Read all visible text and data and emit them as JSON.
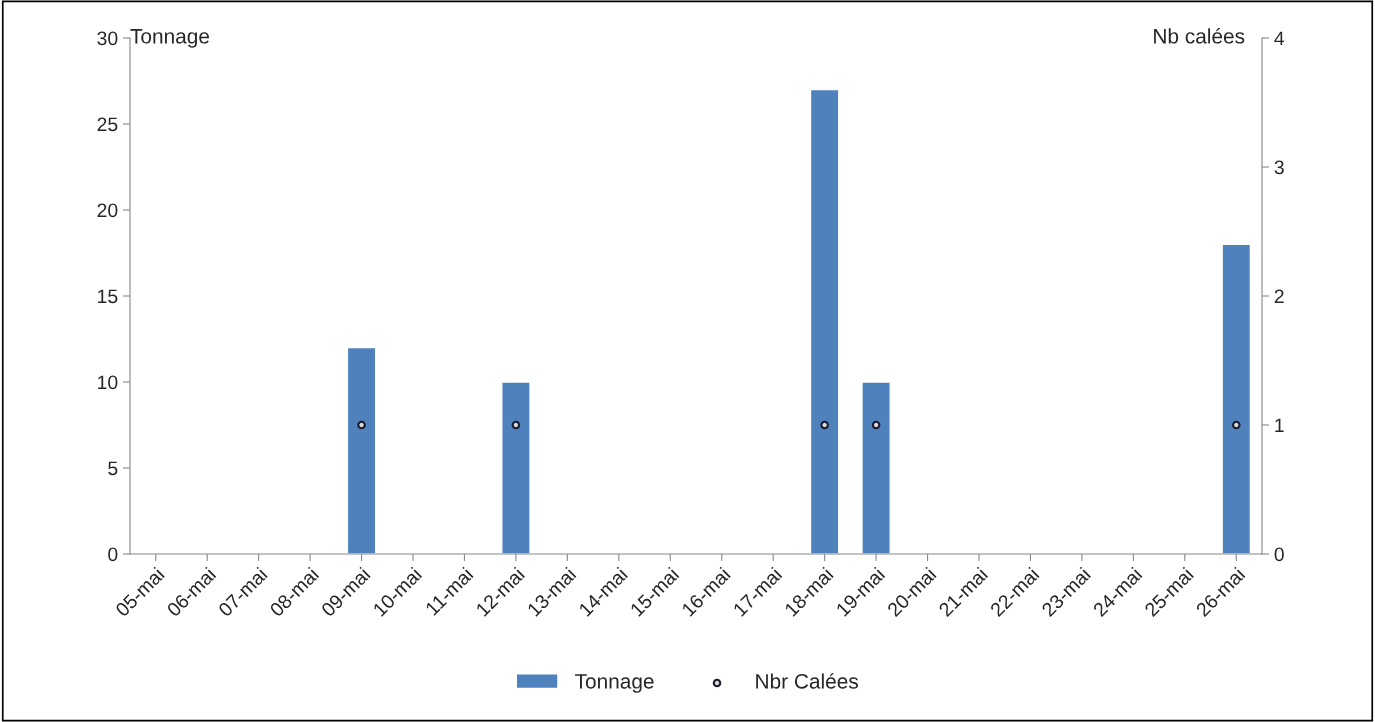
{
  "chart_data": {
    "type": "bar",
    "categories": [
      "05-mai",
      "06-mai",
      "07-mai",
      "08-mai",
      "09-mai",
      "10-mai",
      "11-mai",
      "12-mai",
      "13-mai",
      "14-mai",
      "15-mai",
      "16-mai",
      "17-mai",
      "18-mai",
      "19-mai",
      "20-mai",
      "21-mai",
      "22-mai",
      "23-mai",
      "24-mai",
      "25-mai",
      "26-mai"
    ],
    "series": [
      {
        "name": "Tonnage",
        "color": "#4f81bd",
        "values": [
          null,
          null,
          null,
          null,
          12,
          null,
          null,
          10,
          null,
          null,
          null,
          null,
          null,
          27,
          10,
          null,
          null,
          null,
          null,
          null,
          null,
          18
        ]
      },
      {
        "name": "Nbr Calées",
        "type": "scatter",
        "axis": "y2",
        "color": "#1a1a2e",
        "values": [
          null,
          null,
          null,
          null,
          1,
          null,
          null,
          1,
          null,
          null,
          null,
          null,
          null,
          1,
          1,
          null,
          null,
          null,
          null,
          null,
          null,
          1
        ]
      }
    ],
    "ylabel": "Tonnage",
    "y2label": "Nb calées",
    "ylim": [
      0,
      30
    ],
    "yticks": [
      0,
      5,
      10,
      15,
      20,
      25,
      30
    ],
    "y2lim": [
      0,
      4
    ],
    "y2ticks": [
      0,
      1,
      2,
      3,
      4
    ],
    "grid": false,
    "legend": "bottom",
    "marker": "circle"
  }
}
